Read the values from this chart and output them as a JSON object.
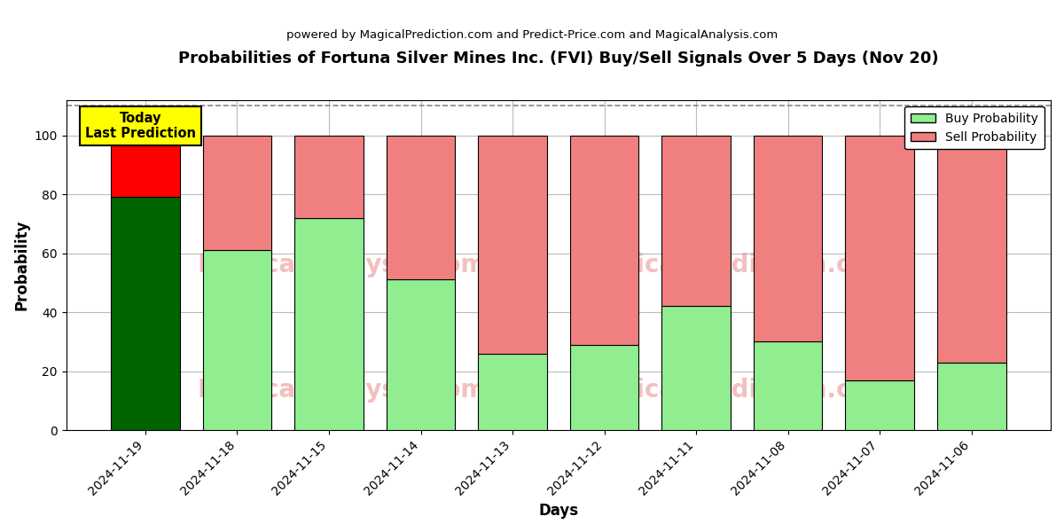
{
  "title": "Probabilities of Fortuna Silver Mines Inc. (FVI) Buy/Sell Signals Over 5 Days (Nov 20)",
  "subtitle": "powered by MagicalPrediction.com and Predict-Price.com and MagicalAnalysis.com",
  "xlabel": "Days",
  "ylabel": "Probability",
  "dates": [
    "2024-11-19",
    "2024-11-18",
    "2024-11-15",
    "2024-11-14",
    "2024-11-13",
    "2024-11-12",
    "2024-11-11",
    "2024-11-08",
    "2024-11-07",
    "2024-11-06"
  ],
  "buy_values": [
    79,
    61,
    72,
    51,
    26,
    29,
    42,
    30,
    17,
    23
  ],
  "sell_values": [
    21,
    39,
    28,
    49,
    74,
    71,
    58,
    70,
    83,
    77
  ],
  "today_bar_buy_color": "#006400",
  "today_bar_sell_color": "#FF0000",
  "other_bar_buy_color": "#90EE90",
  "other_bar_sell_color": "#F08080",
  "bar_edge_color": "black",
  "bar_edge_width": 0.8,
  "today_annotation_text": "Today\nLast Prediction",
  "today_annotation_bg": "#FFFF00",
  "legend_buy_label": "Buy Probability",
  "legend_sell_label": "Sell Probability",
  "ylim": [
    0,
    112
  ],
  "dashed_line_y": 110,
  "background_color": "#ffffff",
  "grid_color": "#bbbbbb",
  "dashed_line_color": "#888888",
  "bar_width": 0.75
}
